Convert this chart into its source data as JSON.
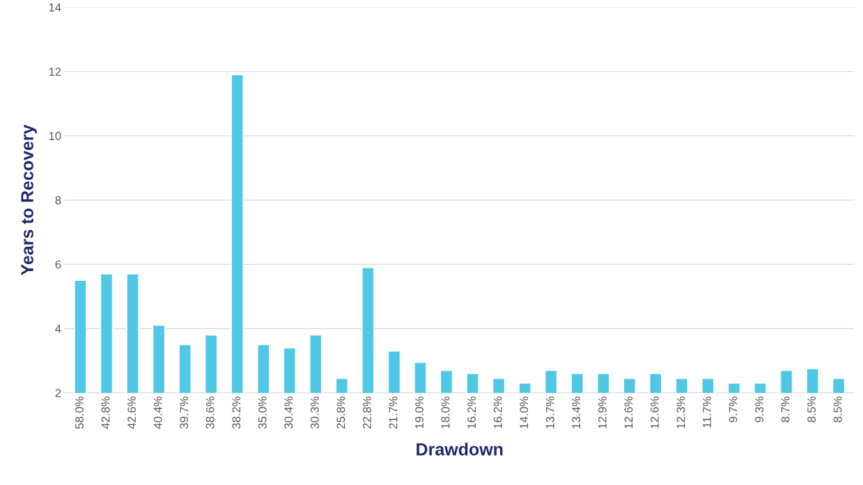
{
  "chart_data": {
    "type": "bar",
    "xlabel": "Drawdown",
    "ylabel": "Years to Recovery",
    "categories": [
      "58.0%",
      "42.8%",
      "42.6%",
      "40.4%",
      "39.7%",
      "38.6%",
      "38.2%",
      "35.0%",
      "30.4%",
      "30.3%",
      "25.8%",
      "22.8%",
      "21.7%",
      "19.0%",
      "18.0%",
      "16.2%",
      "16.2%",
      "14.0%",
      "13.7%",
      "13.4%",
      "12.9%",
      "12.6%",
      "12.6%",
      "12.3%",
      "11.7%",
      "9.7%",
      "9.3%",
      "8.7%",
      "8.5%",
      "8.5%"
    ],
    "values": [
      5.5,
      5.7,
      5.7,
      4.1,
      3.5,
      3.8,
      11.9,
      3.5,
      3.4,
      3.8,
      2.45,
      5.9,
      3.3,
      2.95,
      2.7,
      2.6,
      2.45,
      2.3,
      2.7,
      2.6,
      2.6,
      2.45,
      2.6,
      2.45,
      2.45,
      2.3,
      2.3,
      2.7,
      2.75,
      2.45
    ],
    "color": "#4fc8e5",
    "ylim": [
      2,
      14
    ],
    "yticks": [
      2,
      4,
      6,
      8,
      10,
      12,
      14
    ],
    "grid": "y"
  }
}
